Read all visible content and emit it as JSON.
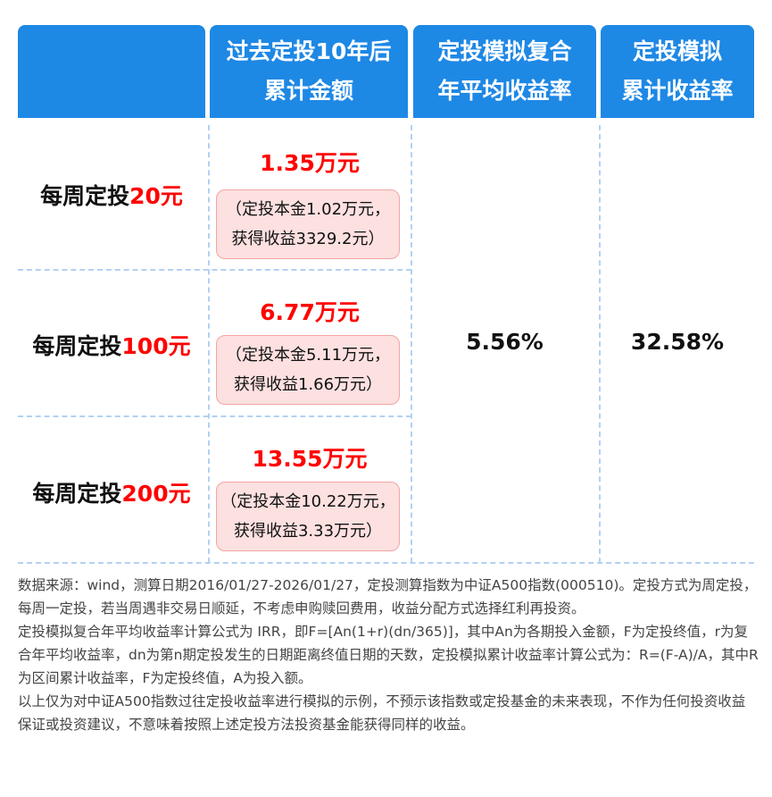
{
  "header": {
    "col2": [
      "过去定投10年后",
      "累计金额"
    ],
    "col3": [
      "定投模拟复合",
      "年平均收益率"
    ],
    "col4": [
      "定投模拟",
      "累计收益率"
    ]
  },
  "rows": [
    {
      "label": "每周定投",
      "amount": "20元",
      "total": "1.35万元",
      "detail1": "（定投本金1.02万元，",
      "detail2": "获得收益3329.2元）"
    },
    {
      "label": "每周定投",
      "amount": "100元",
      "total": "6.77万元",
      "detail1": "（定投本金5.11万元，",
      "detail2": "获得收益1.66万元）"
    },
    {
      "label": "每周定投",
      "amount": "200元",
      "total": "13.55万元",
      "detail1": "（定投本金10.22万元，",
      "detail2": "获得收益3.33万元）"
    }
  ],
  "annual_return": "5.56%",
  "cumulative_return": "32.58%",
  "notes": [
    "数据来源：wind，测算日期2016/01/27-2026/01/27，定投测算指数为中证A500指数(000510)。定投方式为周定投，每周一定投，若当周遇非交易日顺延，不考虑申购赎回费用，收益分配方式选择红利再投资。",
    "定投模拟复合年平均收益率计算公式为  IRR，即F=[An(1+r)(dn/365)]，其中An为各期投入金额，F为定投终值，r为复合年平均收益率，dn为第n期定投发生的日期距离终值日期的天数，定投模拟累计收益率计算公式为：R=(F-A)/A，其中R为区间累计收益率，F为定投终值，A为投入额。",
    "以上仅为对中证A500指数过往定投收益率进行模拟的示例，不预示该指数或定投基金的未来表现，不作为任何投资收益保证或投资建议，不意味着按照上述定投方法投资基金能获得同样的收益。"
  ],
  "colors": {
    "header": "#1e88e5",
    "highlight": "#ff0000",
    "box_bg": "#fde0e0"
  }
}
